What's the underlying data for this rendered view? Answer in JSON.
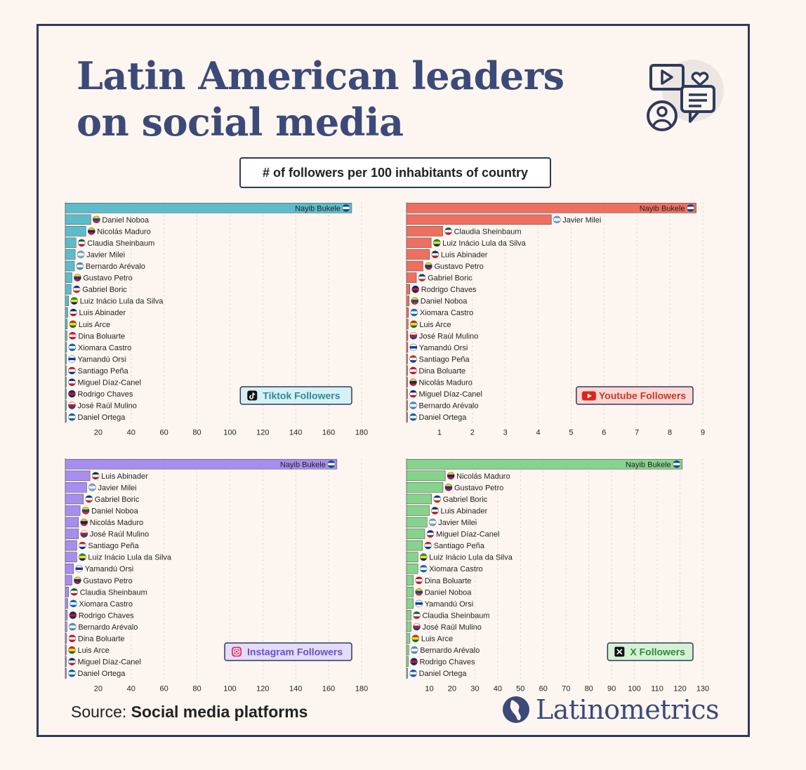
{
  "title_line1": "Latin American leaders",
  "title_line2": "on social media",
  "subtitle": "# of followers per 100 inhabitants of country",
  "source_prefix": "Source:",
  "source_text": "Social media platforms",
  "brand": "Latinometrics",
  "chart_data": [
    {
      "type": "bar",
      "orientation": "horizontal",
      "platform_label": "Tiktok Followers",
      "color": "#5bbccb",
      "badge_bg": "#d7f0f4",
      "badge_border": "#2f3a5c",
      "icon": "tiktok-icon",
      "xlim": [
        0,
        180
      ],
      "xticks": [
        20,
        40,
        60,
        80,
        100,
        120,
        140,
        160,
        180
      ],
      "categories": [
        "Nayib Bukele",
        "Daniel Noboa",
        "Nicolás Maduro",
        "Claudia Sheinbaum",
        "Javier Milei",
        "Bernardo Arévalo",
        "Gustavo Petro",
        "Gabriel Boric",
        "Luiz Inácio Lula da Silva",
        "Luis Abinader",
        "Luis Arce",
        "Dina Boluarte",
        "Xiomara Castro",
        "Yamandú Orsi",
        "Santiago Peña",
        "Miguel Díaz-Canel",
        "Rodrigo Chaves",
        "José Raúl Mulino",
        "Daniel Ortega"
      ],
      "values": [
        174,
        15.5,
        12.5,
        6.5,
        6,
        5.5,
        4,
        3.5,
        2,
        1.5,
        1.2,
        1,
        0.8,
        0.6,
        0.5,
        0.4,
        0.3,
        0.3,
        0.2
      ]
    },
    {
      "type": "bar",
      "orientation": "horizontal",
      "platform_label": "Youtube Followers",
      "color": "#ee6f60",
      "badge_bg": "#fbd8d3",
      "badge_border": "#2f3a5c",
      "icon": "youtube-icon",
      "xlim": [
        0,
        9
      ],
      "xticks": [
        1,
        2,
        3,
        4,
        5,
        6,
        7,
        8,
        9
      ],
      "categories": [
        "Nayib Bukele",
        "Javier Milei",
        "Claudia Sheinbaum",
        "Luiz Inácio Lula da Silva",
        "Luis Abinader",
        "Gustavo Petro",
        "Gabriel Boric",
        "Rodrigo Chaves",
        "Daniel Noboa",
        "Xiomara Castro",
        "Luis Arce",
        "José Raúl Mulino",
        "Yamandú Orsi",
        "Santiago Peña",
        "Dina Boluarte",
        "Nicolás Maduro",
        "Miguel Díaz-Canel",
        "Bernardo Arévalo",
        "Daniel Ortega"
      ],
      "values": [
        8.8,
        4.4,
        1.1,
        0.75,
        0.7,
        0.5,
        0.3,
        0.1,
        0.08,
        0.06,
        0.05,
        0.04,
        0.04,
        0.03,
        0.03,
        0.02,
        0.02,
        0.02,
        0.01
      ]
    },
    {
      "type": "bar",
      "orientation": "horizontal",
      "platform_label": "Instagram Followers",
      "color": "#a78df0",
      "badge_bg": "#e4dcfb",
      "badge_border": "#2f3a5c",
      "icon": "instagram-icon",
      "xlim": [
        0,
        180
      ],
      "xticks": [
        20,
        40,
        60,
        80,
        100,
        120,
        140,
        160,
        180
      ],
      "categories": [
        "Nayib Bukele",
        "Luis Abinader",
        "Javier Milei",
        "Gabriel Boric",
        "Daniel Noboa",
        "Nicolás Maduro",
        "José Raúl Mulino",
        "Santiago Peña",
        "Luiz Inácio Lula da Silva",
        "Yamandú Orsi",
        "Gustavo Petro",
        "Claudia Sheinbaum",
        "Xiomara Castro",
        "Rodrigo Chaves",
        "Bernardo Arévalo",
        "Dina Boluarte",
        "Luis Arce",
        "Miguel Díaz-Canel",
        "Daniel Ortega"
      ],
      "values": [
        165,
        15,
        13,
        11,
        9,
        8,
        8,
        7,
        7,
        5,
        4,
        2,
        1.5,
        1.2,
        1,
        0.8,
        0.6,
        0.4,
        0.3
      ]
    },
    {
      "type": "bar",
      "orientation": "horizontal",
      "platform_label": "X Followers",
      "color": "#86d38d",
      "badge_bg": "#d6f2d6",
      "badge_border": "#2f3a5c",
      "icon": "x-icon",
      "xlim": [
        0,
        130
      ],
      "xticks": [
        10,
        20,
        30,
        40,
        50,
        60,
        70,
        80,
        90,
        100,
        110,
        120,
        130
      ],
      "categories": [
        "Nayib Bukele",
        "Nicolás Maduro",
        "Gustavo Petro",
        "Gabriel Boric",
        "Luis Abinader",
        "Javier Milei",
        "Miguel Díaz-Canel",
        "Santiago Peña",
        "Luiz Inácio Lula da Silva",
        "Xiomara Castro",
        "Dina Boluarte",
        "Daniel Noboa",
        "Yamandú Orsi",
        "Claudia Sheinbaum",
        "José Raúl Mulino",
        "Luis Arce",
        "Bernardo Arévalo",
        "Rodrigo Chaves",
        "Daniel Ortega"
      ],
      "values": [
        121,
        17,
        16,
        11,
        10,
        9,
        8,
        7,
        5,
        5,
        3,
        3,
        3,
        2,
        2,
        1.5,
        1,
        0.8,
        0.5
      ]
    }
  ],
  "flags": {
    "Nayib Bukele": [
      "#0047ab",
      "#ffffff",
      "#0047ab"
    ],
    "Daniel Noboa": [
      "#ffd100",
      "#034ea2",
      "#ed1c24"
    ],
    "Nicolás Maduro": [
      "#ffcc00",
      "#00247d",
      "#cf142b"
    ],
    "Claudia Sheinbaum": [
      "#006847",
      "#ffffff",
      "#ce1126"
    ],
    "Javier Milei": [
      "#74acdf",
      "#ffffff",
      "#74acdf"
    ],
    "Bernardo Arévalo": [
      "#4997d0",
      "#ffffff",
      "#4997d0"
    ],
    "Gustavo Petro": [
      "#fcd116",
      "#003893",
      "#ce1126"
    ],
    "Gabriel Boric": [
      "#0039a6",
      "#ffffff",
      "#d52b1e"
    ],
    "Luiz Inácio Lula da Silva": [
      "#009c3b",
      "#ffdf00",
      "#002776"
    ],
    "Luis Abinader": [
      "#002d62",
      "#ffffff",
      "#ce1126"
    ],
    "Luis Arce": [
      "#d52b1e",
      "#f9e300",
      "#007934"
    ],
    "Dina Boluarte": [
      "#d91023",
      "#ffffff",
      "#d91023"
    ],
    "Xiomara Castro": [
      "#0073cf",
      "#ffffff",
      "#0073cf"
    ],
    "Yamandú Orsi": [
      "#ffffff",
      "#0038a8",
      "#ffffff"
    ],
    "Santiago Peña": [
      "#d52b1e",
      "#ffffff",
      "#0038a8"
    ],
    "Miguel Díaz-Canel": [
      "#002a8f",
      "#ffffff",
      "#cf142b"
    ],
    "Rodrigo Chaves": [
      "#002b7f",
      "#ce1126",
      "#002b7f"
    ],
    "José Raúl Mulino": [
      "#ffffff",
      "#d21034",
      "#005293"
    ],
    "Daniel Ortega": [
      "#0067c6",
      "#ffffff",
      "#0067c6"
    ]
  }
}
